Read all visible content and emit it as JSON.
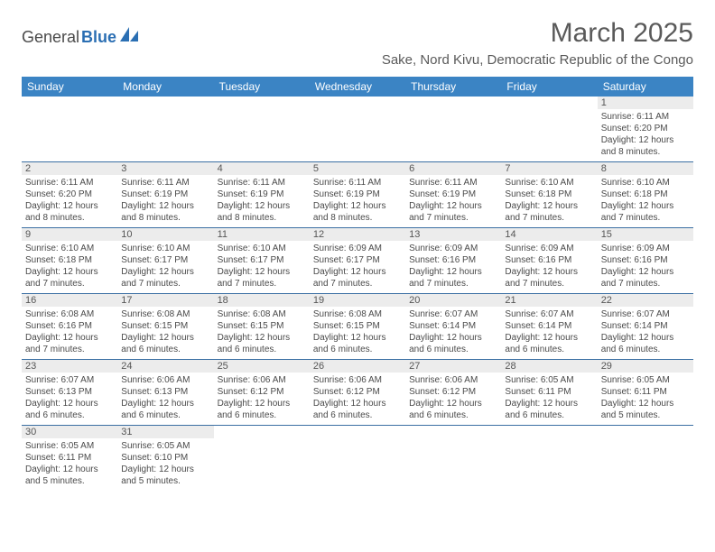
{
  "logo": {
    "part1": "General",
    "part2": "Blue"
  },
  "title": "March 2025",
  "location": "Sake, Nord Kivu, Democratic Republic of the Congo",
  "dayNames": [
    "Sunday",
    "Monday",
    "Tuesday",
    "Wednesday",
    "Thursday",
    "Friday",
    "Saturday"
  ],
  "colors": {
    "headerBar": "#3b84c4",
    "headerText": "#ffffff",
    "dayNumBg": "#ececec",
    "rowBorder": "#3b6fa3",
    "bodyText": "#4a4a4a",
    "titleText": "#5a5a5a",
    "logoAccent": "#2b6fb3"
  },
  "typography": {
    "titleFontSize": 30,
    "locationFontSize": 15,
    "dayHeadFontSize": 12,
    "dayNumFontSize": 11,
    "cellFontSize": 10
  },
  "weeks": [
    [
      null,
      null,
      null,
      null,
      null,
      null,
      {
        "n": "1",
        "sunrise": "Sunrise: 6:11 AM",
        "sunset": "Sunset: 6:20 PM",
        "daylight": "Daylight: 12 hours and 8 minutes."
      }
    ],
    [
      {
        "n": "2",
        "sunrise": "Sunrise: 6:11 AM",
        "sunset": "Sunset: 6:20 PM",
        "daylight": "Daylight: 12 hours and 8 minutes."
      },
      {
        "n": "3",
        "sunrise": "Sunrise: 6:11 AM",
        "sunset": "Sunset: 6:19 PM",
        "daylight": "Daylight: 12 hours and 8 minutes."
      },
      {
        "n": "4",
        "sunrise": "Sunrise: 6:11 AM",
        "sunset": "Sunset: 6:19 PM",
        "daylight": "Daylight: 12 hours and 8 minutes."
      },
      {
        "n": "5",
        "sunrise": "Sunrise: 6:11 AM",
        "sunset": "Sunset: 6:19 PM",
        "daylight": "Daylight: 12 hours and 8 minutes."
      },
      {
        "n": "6",
        "sunrise": "Sunrise: 6:11 AM",
        "sunset": "Sunset: 6:19 PM",
        "daylight": "Daylight: 12 hours and 7 minutes."
      },
      {
        "n": "7",
        "sunrise": "Sunrise: 6:10 AM",
        "sunset": "Sunset: 6:18 PM",
        "daylight": "Daylight: 12 hours and 7 minutes."
      },
      {
        "n": "8",
        "sunrise": "Sunrise: 6:10 AM",
        "sunset": "Sunset: 6:18 PM",
        "daylight": "Daylight: 12 hours and 7 minutes."
      }
    ],
    [
      {
        "n": "9",
        "sunrise": "Sunrise: 6:10 AM",
        "sunset": "Sunset: 6:18 PM",
        "daylight": "Daylight: 12 hours and 7 minutes."
      },
      {
        "n": "10",
        "sunrise": "Sunrise: 6:10 AM",
        "sunset": "Sunset: 6:17 PM",
        "daylight": "Daylight: 12 hours and 7 minutes."
      },
      {
        "n": "11",
        "sunrise": "Sunrise: 6:10 AM",
        "sunset": "Sunset: 6:17 PM",
        "daylight": "Daylight: 12 hours and 7 minutes."
      },
      {
        "n": "12",
        "sunrise": "Sunrise: 6:09 AM",
        "sunset": "Sunset: 6:17 PM",
        "daylight": "Daylight: 12 hours and 7 minutes."
      },
      {
        "n": "13",
        "sunrise": "Sunrise: 6:09 AM",
        "sunset": "Sunset: 6:16 PM",
        "daylight": "Daylight: 12 hours and 7 minutes."
      },
      {
        "n": "14",
        "sunrise": "Sunrise: 6:09 AM",
        "sunset": "Sunset: 6:16 PM",
        "daylight": "Daylight: 12 hours and 7 minutes."
      },
      {
        "n": "15",
        "sunrise": "Sunrise: 6:09 AM",
        "sunset": "Sunset: 6:16 PM",
        "daylight": "Daylight: 12 hours and 7 minutes."
      }
    ],
    [
      {
        "n": "16",
        "sunrise": "Sunrise: 6:08 AM",
        "sunset": "Sunset: 6:16 PM",
        "daylight": "Daylight: 12 hours and 7 minutes."
      },
      {
        "n": "17",
        "sunrise": "Sunrise: 6:08 AM",
        "sunset": "Sunset: 6:15 PM",
        "daylight": "Daylight: 12 hours and 6 minutes."
      },
      {
        "n": "18",
        "sunrise": "Sunrise: 6:08 AM",
        "sunset": "Sunset: 6:15 PM",
        "daylight": "Daylight: 12 hours and 6 minutes."
      },
      {
        "n": "19",
        "sunrise": "Sunrise: 6:08 AM",
        "sunset": "Sunset: 6:15 PM",
        "daylight": "Daylight: 12 hours and 6 minutes."
      },
      {
        "n": "20",
        "sunrise": "Sunrise: 6:07 AM",
        "sunset": "Sunset: 6:14 PM",
        "daylight": "Daylight: 12 hours and 6 minutes."
      },
      {
        "n": "21",
        "sunrise": "Sunrise: 6:07 AM",
        "sunset": "Sunset: 6:14 PM",
        "daylight": "Daylight: 12 hours and 6 minutes."
      },
      {
        "n": "22",
        "sunrise": "Sunrise: 6:07 AM",
        "sunset": "Sunset: 6:14 PM",
        "daylight": "Daylight: 12 hours and 6 minutes."
      }
    ],
    [
      {
        "n": "23",
        "sunrise": "Sunrise: 6:07 AM",
        "sunset": "Sunset: 6:13 PM",
        "daylight": "Daylight: 12 hours and 6 minutes."
      },
      {
        "n": "24",
        "sunrise": "Sunrise: 6:06 AM",
        "sunset": "Sunset: 6:13 PM",
        "daylight": "Daylight: 12 hours and 6 minutes."
      },
      {
        "n": "25",
        "sunrise": "Sunrise: 6:06 AM",
        "sunset": "Sunset: 6:12 PM",
        "daylight": "Daylight: 12 hours and 6 minutes."
      },
      {
        "n": "26",
        "sunrise": "Sunrise: 6:06 AM",
        "sunset": "Sunset: 6:12 PM",
        "daylight": "Daylight: 12 hours and 6 minutes."
      },
      {
        "n": "27",
        "sunrise": "Sunrise: 6:06 AM",
        "sunset": "Sunset: 6:12 PM",
        "daylight": "Daylight: 12 hours and 6 minutes."
      },
      {
        "n": "28",
        "sunrise": "Sunrise: 6:05 AM",
        "sunset": "Sunset: 6:11 PM",
        "daylight": "Daylight: 12 hours and 6 minutes."
      },
      {
        "n": "29",
        "sunrise": "Sunrise: 6:05 AM",
        "sunset": "Sunset: 6:11 PM",
        "daylight": "Daylight: 12 hours and 5 minutes."
      }
    ],
    [
      {
        "n": "30",
        "sunrise": "Sunrise: 6:05 AM",
        "sunset": "Sunset: 6:11 PM",
        "daylight": "Daylight: 12 hours and 5 minutes."
      },
      {
        "n": "31",
        "sunrise": "Sunrise: 6:05 AM",
        "sunset": "Sunset: 6:10 PM",
        "daylight": "Daylight: 12 hours and 5 minutes."
      },
      null,
      null,
      null,
      null,
      null
    ]
  ]
}
